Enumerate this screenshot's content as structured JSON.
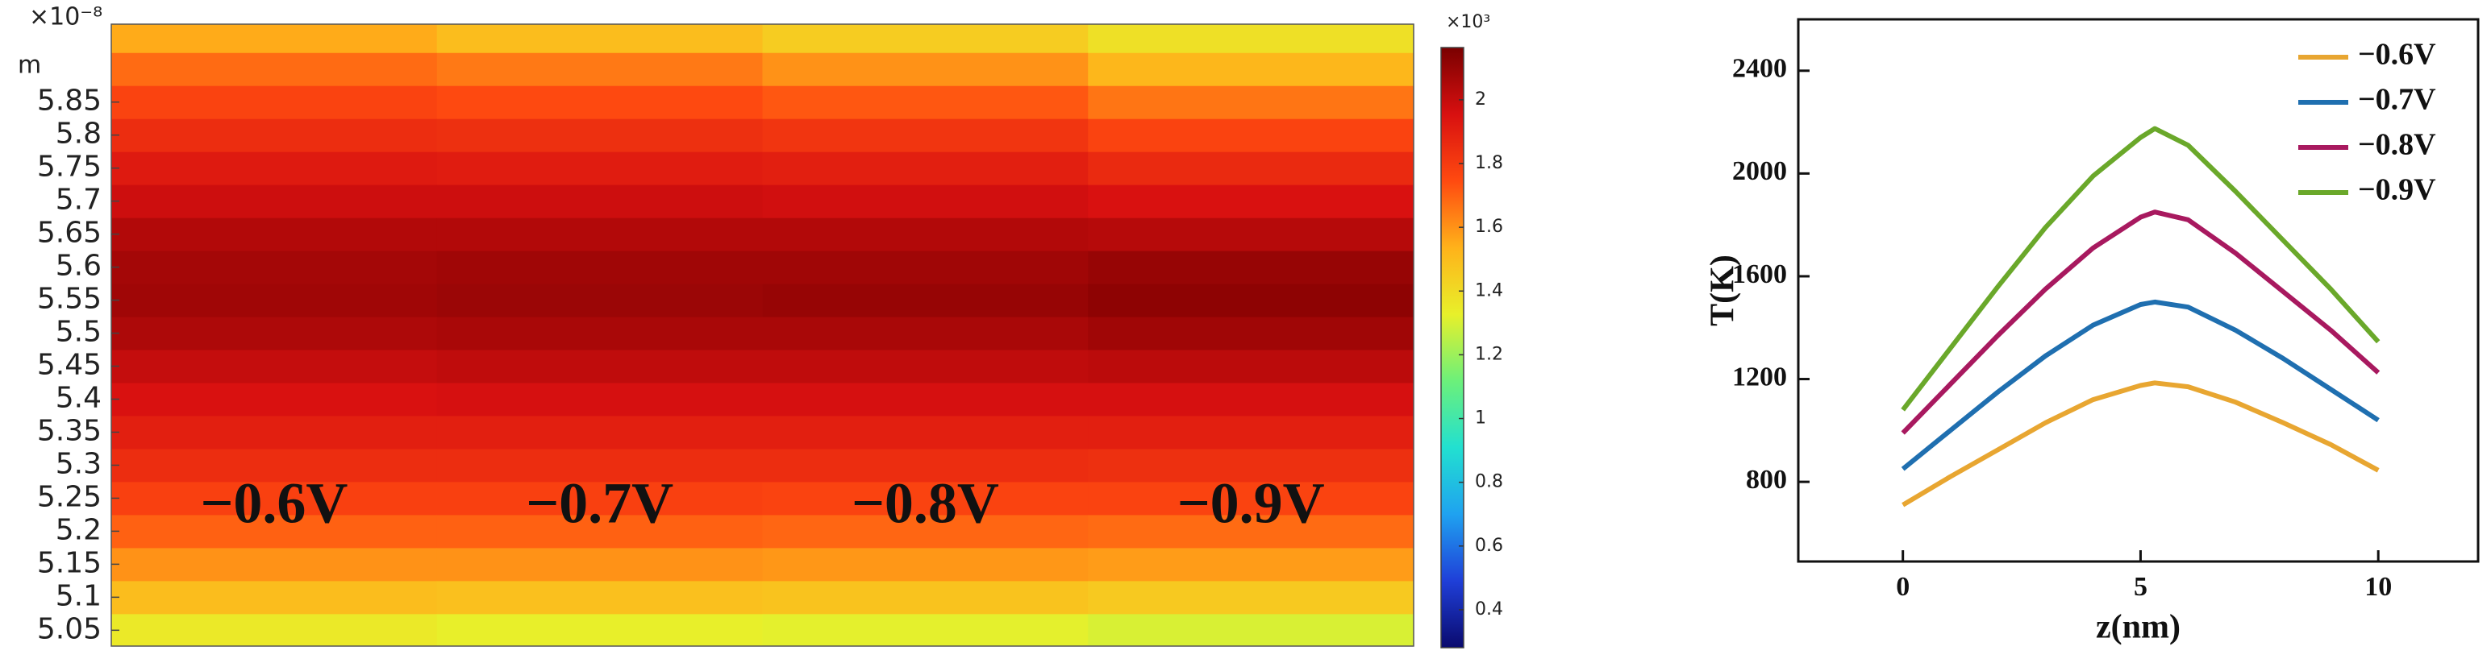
{
  "chart_data": [
    {
      "type": "heatmap",
      "y_exponent": "×10⁻⁸",
      "y_unit": "m",
      "ylim": [
        5.026,
        5.968
      ],
      "yticks": [
        5.05,
        5.1,
        5.15,
        5.2,
        5.25,
        5.3,
        5.35,
        5.4,
        5.45,
        5.5,
        5.55,
        5.6,
        5.65,
        5.7,
        5.75,
        5.8,
        5.85
      ],
      "y": [
        5.05,
        5.1,
        5.15,
        5.2,
        5.25,
        5.3,
        5.35,
        5.4,
        5.45,
        5.5,
        5.55,
        5.6,
        5.65,
        5.7,
        5.75,
        5.8,
        5.85,
        5.9,
        5.95
      ],
      "panels": [
        {
          "label": "−0.6V",
          "values": [
            1.35,
            1.5,
            1.6,
            1.7,
            1.78,
            1.85,
            1.9,
            1.95,
            2.0,
            2.05,
            2.08,
            2.07,
            2.04,
            1.98,
            1.92,
            1.85,
            1.77,
            1.68,
            1.55
          ]
        },
        {
          "label": "−0.7V",
          "values": [
            1.33,
            1.49,
            1.6,
            1.7,
            1.78,
            1.85,
            1.9,
            1.96,
            2.01,
            2.06,
            2.09,
            2.08,
            2.04,
            1.98,
            1.91,
            1.84,
            1.75,
            1.65,
            1.5
          ]
        },
        {
          "label": "−0.8V",
          "values": [
            1.32,
            1.48,
            1.59,
            1.69,
            1.77,
            1.85,
            1.9,
            1.96,
            2.01,
            2.06,
            2.1,
            2.08,
            2.04,
            1.97,
            1.9,
            1.82,
            1.72,
            1.6,
            1.45
          ]
        },
        {
          "label": "−0.9V",
          "values": [
            1.3,
            1.46,
            1.58,
            1.68,
            1.77,
            1.84,
            1.9,
            1.96,
            2.02,
            2.08,
            2.12,
            2.1,
            2.03,
            1.95,
            1.86,
            1.77,
            1.66,
            1.52,
            1.38
          ]
        }
      ],
      "colorbar": {
        "label": "×10³",
        "lim": [
          0.281,
          2.164
        ],
        "ticks": [
          0.4,
          0.6,
          0.8,
          1,
          1.2,
          1.4,
          1.6,
          1.8,
          2
        ],
        "colors": [
          "#0a0a6e",
          "#1f3fd8",
          "#1fa2f0",
          "#22e0d0",
          "#6cf07a",
          "#e8f02a",
          "#ffb21a",
          "#ff4a10",
          "#d81010",
          "#7a0000"
        ]
      }
    },
    {
      "type": "line",
      "xlabel": "z(nm)",
      "ylabel": "T(K)",
      "xlim": [
        -2.2,
        12.1
      ],
      "xticks": [
        0,
        5,
        10
      ],
      "ylim": [
        490,
        2600
      ],
      "yticks": [
        800,
        1200,
        1600,
        2000,
        2400
      ],
      "legend": "upper right",
      "x": [
        0,
        1,
        2,
        3,
        4,
        5,
        5.3,
        6,
        7,
        8,
        9,
        10
      ],
      "series": [
        {
          "name": "−0.6V",
          "color": "#e8a631",
          "values": [
            710,
            820,
            925,
            1030,
            1120,
            1175,
            1185,
            1170,
            1110,
            1030,
            945,
            845
          ]
        },
        {
          "name": "−0.7V",
          "color": "#1f6fb0",
          "values": [
            850,
            1000,
            1150,
            1290,
            1410,
            1490,
            1500,
            1480,
            1390,
            1280,
            1160,
            1040
          ]
        },
        {
          "name": "−0.8V",
          "color": "#a8195f",
          "values": [
            990,
            1180,
            1370,
            1550,
            1710,
            1830,
            1850,
            1820,
            1690,
            1540,
            1390,
            1225
          ]
        },
        {
          "name": "−0.9V",
          "color": "#6aa82a",
          "values": [
            1080,
            1320,
            1560,
            1790,
            1990,
            2140,
            2175,
            2110,
            1930,
            1740,
            1550,
            1345
          ]
        }
      ]
    }
  ]
}
